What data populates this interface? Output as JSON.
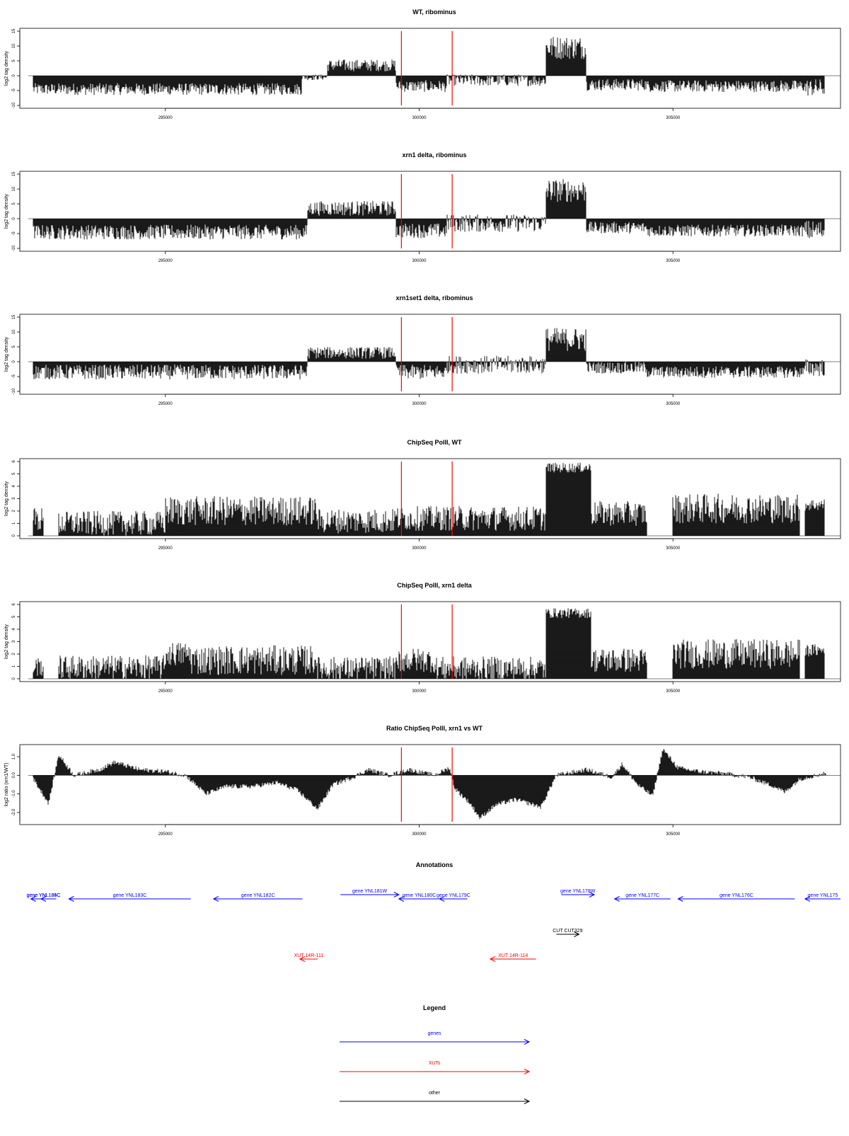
{
  "chart_data": [
    {
      "type": "bar",
      "title": "WT, ribominus",
      "ylabel": "log2 tag density",
      "xticks": [
        "295000",
        "300000",
        "305000"
      ],
      "xlim": [
        292300,
        308300
      ],
      "ylim": [
        -10,
        15
      ],
      "yticks": [
        "-10",
        "-5",
        "0",
        "5",
        "10",
        "15"
      ],
      "vlines": [
        299650,
        300650
      ],
      "segments": [
        {
          "from": 292400,
          "to": 297700,
          "level": -4.5,
          "noise": 2.0
        },
        {
          "from": 297700,
          "to": 298200,
          "level": -0.5,
          "noise": 1.0
        },
        {
          "from": 298200,
          "to": 299550,
          "level": 3.5,
          "noise": 2.0
        },
        {
          "from": 299550,
          "to": 300550,
          "level": -3.5,
          "noise": 2.0
        },
        {
          "from": 300550,
          "to": 302500,
          "level": -1.5,
          "noise": 2.0
        },
        {
          "from": 302500,
          "to": 303300,
          "level": 9.5,
          "noise": 4.0
        },
        {
          "from": 303300,
          "to": 304500,
          "level": -3.0,
          "noise": 2.0
        },
        {
          "from": 304500,
          "to": 307600,
          "level": -3.5,
          "noise": 2.0
        },
        {
          "from": 307600,
          "to": 308000,
          "level": -4.0,
          "noise": 3.0
        }
      ]
    },
    {
      "type": "bar",
      "title": "xrn1 delta, ribominus",
      "ylabel": "log2 tag density",
      "xticks": [
        "295000",
        "300000",
        "305000"
      ],
      "xlim": [
        292300,
        308300
      ],
      "ylim": [
        -10,
        15
      ],
      "yticks": [
        "-10",
        "-5",
        "0",
        "5",
        "10",
        "15"
      ],
      "vlines": [
        299650,
        300650
      ],
      "segments": [
        {
          "from": 292400,
          "to": 297800,
          "level": -4.5,
          "noise": 2.5
        },
        {
          "from": 297800,
          "to": 299550,
          "level": 3.5,
          "noise": 2.5
        },
        {
          "from": 299550,
          "to": 300550,
          "level": -4.0,
          "noise": 2.5
        },
        {
          "from": 300550,
          "to": 302500,
          "level": -1.5,
          "noise": 3.0
        },
        {
          "from": 302500,
          "to": 303300,
          "level": 9.5,
          "noise": 4.0
        },
        {
          "from": 303300,
          "to": 304500,
          "level": -3.0,
          "noise": 2.0
        },
        {
          "from": 304500,
          "to": 307600,
          "level": -4.0,
          "noise": 2.0
        },
        {
          "from": 307600,
          "to": 308000,
          "level": -4.0,
          "noise": 3.5
        }
      ]
    },
    {
      "type": "bar",
      "title": "xrn1set1 delta, ribominus",
      "ylabel": "log2 tag density",
      "xticks": [
        "295000",
        "300000",
        "305000"
      ],
      "xlim": [
        292300,
        308300
      ],
      "ylim": [
        -10,
        15
      ],
      "yticks": [
        "-10",
        "-5",
        "0",
        "5",
        "10",
        "15"
      ],
      "vlines": [
        299650,
        300650
      ],
      "segments": [
        {
          "from": 292400,
          "to": 297800,
          "level": -3.5,
          "noise": 2.5
        },
        {
          "from": 297800,
          "to": 299550,
          "level": 3.0,
          "noise": 2.0
        },
        {
          "from": 299550,
          "to": 300550,
          "level": -3.5,
          "noise": 2.5
        },
        {
          "from": 300550,
          "to": 302500,
          "level": -1.0,
          "noise": 3.0
        },
        {
          "from": 302500,
          "to": 303300,
          "level": 7.5,
          "noise": 4.0
        },
        {
          "from": 303300,
          "to": 304500,
          "level": -2.0,
          "noise": 2.0
        },
        {
          "from": 304500,
          "to": 307600,
          "level": -3.5,
          "noise": 2.0
        },
        {
          "from": 307600,
          "to": 308000,
          "level": -2.0,
          "noise": 3.0
        }
      ]
    },
    {
      "type": "bar",
      "title": "ChipSeq PolII, WT",
      "ylabel": "log2 tag density",
      "xticks": [
        "295000",
        "300000",
        "305000"
      ],
      "xlim": [
        292300,
        308300
      ],
      "ylim": [
        0,
        6
      ],
      "yticks": [
        "0",
        "1",
        "2",
        "3",
        "4",
        "5",
        "6"
      ],
      "vlines": [
        299650,
        300650
      ],
      "segments": [
        {
          "from": 292400,
          "to": 292600,
          "level": 1.3,
          "noise": 1.0
        },
        {
          "from": 292600,
          "to": 292900,
          "level": 0.0,
          "noise": 0.0
        },
        {
          "from": 292900,
          "to": 295000,
          "level": 1.0,
          "noise": 1.0
        },
        {
          "from": 295000,
          "to": 298000,
          "level": 2.0,
          "noise": 1.2
        },
        {
          "from": 298000,
          "to": 299500,
          "level": 1.2,
          "noise": 1.0
        },
        {
          "from": 299500,
          "to": 302500,
          "level": 1.4,
          "noise": 1.0
        },
        {
          "from": 302500,
          "to": 303400,
          "level": 5.5,
          "noise": 0.4
        },
        {
          "from": 303400,
          "to": 304500,
          "level": 1.8,
          "noise": 1.0
        },
        {
          "from": 304500,
          "to": 305000,
          "level": 0.0,
          "noise": 0.0
        },
        {
          "from": 305000,
          "to": 307500,
          "level": 2.2,
          "noise": 1.2
        },
        {
          "from": 307500,
          "to": 307600,
          "level": 0.0,
          "noise": 0.0
        },
        {
          "from": 307600,
          "to": 308000,
          "level": 2.5,
          "noise": 0.5
        }
      ]
    },
    {
      "type": "bar",
      "title": "ChipSeq PolII, xrn1 delta",
      "ylabel": "log2 tag density",
      "xticks": [
        "295000",
        "300000",
        "305000"
      ],
      "xlim": [
        292300,
        308300
      ],
      "ylim": [
        0,
        6
      ],
      "yticks": [
        "0",
        "1",
        "2",
        "3",
        "4",
        "5",
        "6"
      ],
      "vlines": [
        299650,
        300650
      ],
      "segments": [
        {
          "from": 292400,
          "to": 292600,
          "level": 1.0,
          "noise": 0.8
        },
        {
          "from": 292600,
          "to": 292900,
          "level": 0.0,
          "noise": 0.0
        },
        {
          "from": 292900,
          "to": 295000,
          "level": 0.9,
          "noise": 1.0
        },
        {
          "from": 295000,
          "to": 295500,
          "level": 2.0,
          "noise": 1.0
        },
        {
          "from": 295500,
          "to": 298000,
          "level": 1.5,
          "noise": 1.2
        },
        {
          "from": 298000,
          "to": 299600,
          "level": 0.8,
          "noise": 1.0
        },
        {
          "from": 299600,
          "to": 300300,
          "level": 1.5,
          "noise": 1.0
        },
        {
          "from": 300300,
          "to": 302500,
          "level": 0.8,
          "noise": 1.0
        },
        {
          "from": 302500,
          "to": 303400,
          "level": 5.3,
          "noise": 0.4
        },
        {
          "from": 303400,
          "to": 304500,
          "level": 1.5,
          "noise": 1.0
        },
        {
          "from": 304500,
          "to": 305000,
          "level": 0.0,
          "noise": 0.0
        },
        {
          "from": 305000,
          "to": 307500,
          "level": 2.0,
          "noise": 1.2
        },
        {
          "from": 307500,
          "to": 307600,
          "level": 0.0,
          "noise": 0.0
        },
        {
          "from": 307600,
          "to": 308000,
          "level": 2.3,
          "noise": 0.5
        }
      ]
    },
    {
      "type": "area",
      "title": "Ratio ChipSeq PolII, xrn1 vs WT",
      "ylabel": "log2 ratio (xrn1/WT)",
      "xticks": [
        "295000",
        "300000",
        "305000"
      ],
      "xlim": [
        292300,
        308300
      ],
      "ylim": [
        -2.5,
        1.5
      ],
      "yticks": [
        "-2.0",
        "-1.0",
        "0.0",
        "1.0"
      ],
      "vlines": [
        299650,
        300650
      ],
      "points": [
        [
          292400,
          -0.2
        ],
        [
          292700,
          -1.5
        ],
        [
          292900,
          1.1
        ],
        [
          293200,
          0.0
        ],
        [
          293700,
          0.3
        ],
        [
          294000,
          0.7
        ],
        [
          294500,
          0.3
        ],
        [
          295000,
          0.2
        ],
        [
          295400,
          0.0
        ],
        [
          295800,
          -1.0
        ],
        [
          296200,
          -0.6
        ],
        [
          296700,
          -0.6
        ],
        [
          297200,
          -0.4
        ],
        [
          297600,
          -0.8
        ],
        [
          298000,
          -1.8
        ],
        [
          298300,
          -0.5
        ],
        [
          298700,
          -0.1
        ],
        [
          299000,
          0.3
        ],
        [
          299400,
          0.0
        ],
        [
          299800,
          0.3
        ],
        [
          300300,
          0.0
        ],
        [
          300600,
          0.4
        ],
        [
          300700,
          -0.7
        ],
        [
          301000,
          -1.5
        ],
        [
          301200,
          -2.3
        ],
        [
          301500,
          -1.6
        ],
        [
          301900,
          -1.3
        ],
        [
          302400,
          -1.7
        ],
        [
          302700,
          0.0
        ],
        [
          303300,
          0.3
        ],
        [
          303800,
          -0.1
        ],
        [
          304000,
          0.6
        ],
        [
          304300,
          -0.5
        ],
        [
          304600,
          -1.1
        ],
        [
          304800,
          1.4
        ],
        [
          305100,
          0.4
        ],
        [
          305500,
          0.2
        ],
        [
          306000,
          0.1
        ],
        [
          306500,
          -0.1
        ],
        [
          307000,
          -0.6
        ],
        [
          307200,
          -0.9
        ],
        [
          307500,
          -0.2
        ],
        [
          308000,
          0.1
        ]
      ]
    }
  ],
  "annotations": {
    "title": "Annotations",
    "xlim": [
      292300,
      308300
    ],
    "rows": [
      {
        "label": "gene YNL184C",
        "from": 292850,
        "to": 292350,
        "color": "#0000ff",
        "row": 0
      },
      {
        "label": "gene YNL185C",
        "from": 292650,
        "to": 292550,
        "color": "#0000ff",
        "row": 0
      },
      {
        "label": "gene YNL183C",
        "from": 295500,
        "to": 293100,
        "color": "#0000ff",
        "row": 0
      },
      {
        "label": "gene YNL182C",
        "from": 297700,
        "to": 295950,
        "color": "#0000ff",
        "row": 0
      },
      {
        "label": "gene YNL181W",
        "from": 298450,
        "to": 299600,
        "color": "#0000ff",
        "row": -1
      },
      {
        "label": "gene YNL180C",
        "from": 300400,
        "to": 299600,
        "color": "#0000ff",
        "row": 0
      },
      {
        "label": "gene YNL179C",
        "from": 300950,
        "to": 300400,
        "color": "#0000ff",
        "row": 0
      },
      {
        "label": "gene YNL178W",
        "from": 302800,
        "to": 303450,
        "color": "#0000ff",
        "row": -1
      },
      {
        "label": "gene YNL177C",
        "from": 304950,
        "to": 303850,
        "color": "#0000ff",
        "row": 0
      },
      {
        "label": "gene YNL176C",
        "from": 307400,
        "to": 305100,
        "color": "#0000ff",
        "row": 0
      },
      {
        "label": "gene YNL175",
        "from": 308300,
        "to": 307600,
        "color": "#0000ff",
        "row": 0
      },
      {
        "label": "CUT CUT329",
        "from": 302700,
        "to": 303150,
        "color": "#000000",
        "row": 1
      },
      {
        "label": "XUT 14R-111",
        "from": 298000,
        "to": 297650,
        "color": "#ff0000",
        "row": 2
      },
      {
        "label": "XUT 14R-114",
        "from": 302300,
        "to": 301400,
        "color": "#ff0000",
        "row": 2
      }
    ]
  },
  "legend": {
    "title": "Legend",
    "items": [
      {
        "label": "genes",
        "color": "#0000ff"
      },
      {
        "label": "XUTs",
        "color": "#ff0000"
      },
      {
        "label": "other",
        "color": "#000000"
      }
    ]
  }
}
